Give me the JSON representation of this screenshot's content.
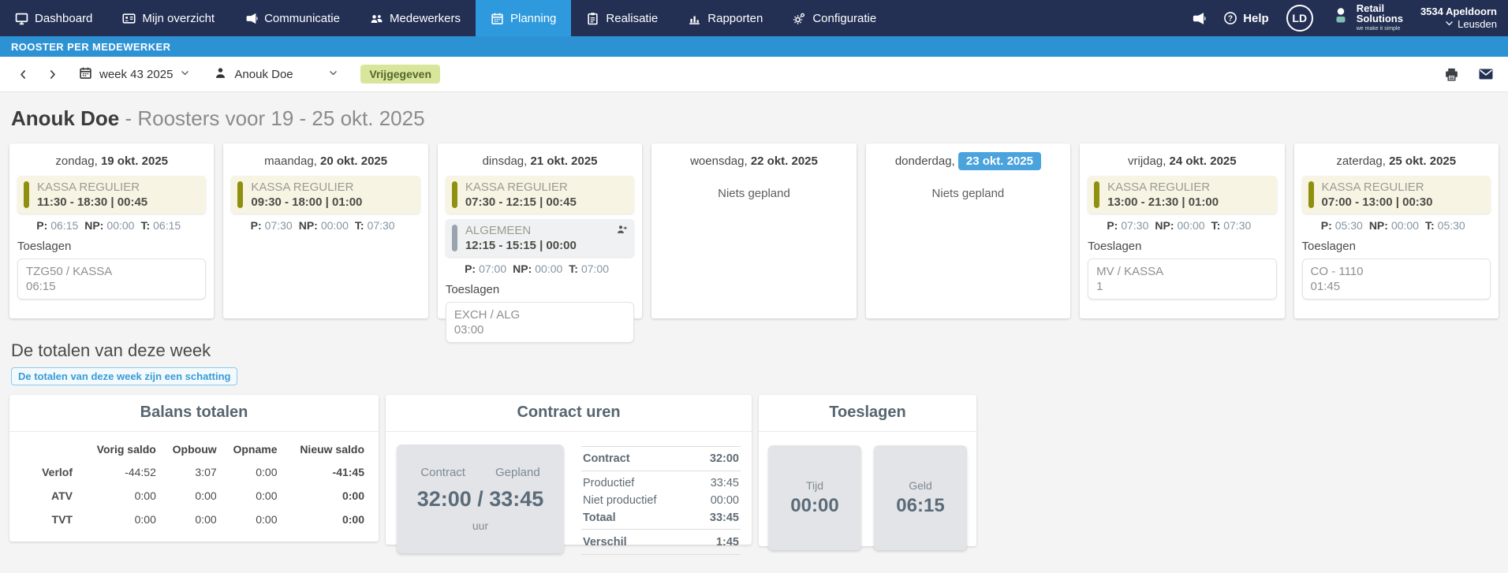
{
  "nav": {
    "items": [
      {
        "label": "Dashboard",
        "icon": "monitor",
        "active": false
      },
      {
        "label": "Mijn overzicht",
        "icon": "idcard",
        "active": false
      },
      {
        "label": "Communicatie",
        "icon": "megaphone",
        "active": false
      },
      {
        "label": "Medewerkers",
        "icon": "people",
        "active": false
      },
      {
        "label": "Planning",
        "icon": "calendar",
        "active": true
      },
      {
        "label": "Realisatie",
        "icon": "clipboard",
        "active": false
      },
      {
        "label": "Rapporten",
        "icon": "chart",
        "active": false
      },
      {
        "label": "Configuratie",
        "icon": "gears",
        "active": false
      }
    ],
    "help_label": "Help",
    "avatar_initials": "LD",
    "brand": {
      "line1": "Retail",
      "line2": "Solutions",
      "tagline": "we make it simple"
    },
    "location": {
      "code": "3534 Apeldoorn",
      "name": "Leusden"
    }
  },
  "subheader": {
    "title": "ROOSTER PER MEDEWERKER"
  },
  "toolbar": {
    "week_label": "week 43 2025",
    "employee": "Anouk Doe",
    "status_badge": "Vrijgegeven"
  },
  "page": {
    "employee_name": "Anouk Doe",
    "title_suffix": " - Roosters voor 19 - 25 okt. 2025"
  },
  "labels": {
    "p": "P:",
    "np": "NP:",
    "t": "T:",
    "toeslagen": "Toeslagen",
    "none_planned": "Niets gepland"
  },
  "days": [
    {
      "day": "zondag,",
      "date": "19 okt. 2025",
      "today": false,
      "shifts": [
        {
          "name": "KASSA REGULIER",
          "time": "11:30 - 18:30 | 00:45",
          "type": "olive",
          "exchange": false
        }
      ],
      "pnt": {
        "p": "06:15",
        "np": "00:00",
        "t": "06:15"
      },
      "toeslagen": [
        {
          "line1": "TZG50 / KASSA",
          "line2": "06:15"
        }
      ]
    },
    {
      "day": "maandag,",
      "date": "20 okt. 2025",
      "today": false,
      "shifts": [
        {
          "name": "KASSA REGULIER",
          "time": "09:30 - 18:00 | 01:00",
          "type": "olive",
          "exchange": false
        }
      ],
      "pnt": {
        "p": "07:30",
        "np": "00:00",
        "t": "07:30"
      },
      "toeslagen": []
    },
    {
      "day": "dinsdag,",
      "date": "21 okt. 2025",
      "today": false,
      "shifts": [
        {
          "name": "KASSA REGULIER",
          "time": "07:30 - 12:15 | 00:45",
          "type": "olive",
          "exchange": false
        },
        {
          "name": "ALGEMEEN",
          "time": "12:15 - 15:15 | 00:00",
          "type": "gray",
          "exchange": true
        }
      ],
      "pnt": {
        "p": "07:00",
        "np": "00:00",
        "t": "07:00"
      },
      "toeslagen": [
        {
          "line1": "EXCH / ALG",
          "line2": "03:00"
        }
      ]
    },
    {
      "day": "woensdag,",
      "date": "22 okt. 2025",
      "today": false,
      "shifts": [],
      "pnt": null,
      "toeslagen": []
    },
    {
      "day": "donderdag,",
      "date": "23 okt. 2025",
      "today": true,
      "shifts": [],
      "pnt": null,
      "toeslagen": []
    },
    {
      "day": "vrijdag,",
      "date": "24 okt. 2025",
      "today": false,
      "shifts": [
        {
          "name": "KASSA REGULIER",
          "time": "13:00 - 21:30 | 01:00",
          "type": "olive",
          "exchange": false
        }
      ],
      "pnt": {
        "p": "07:30",
        "np": "00:00",
        "t": "07:30"
      },
      "toeslagen": [
        {
          "line1": "MV / KASSA",
          "line2": "1"
        }
      ]
    },
    {
      "day": "zaterdag,",
      "date": "25 okt. 2025",
      "today": false,
      "shifts": [
        {
          "name": "KASSA REGULIER",
          "time": "07:00 - 13:00 | 00:30",
          "type": "olive",
          "exchange": false
        }
      ],
      "pnt": {
        "p": "05:30",
        "np": "00:00",
        "t": "05:30"
      },
      "toeslagen": [
        {
          "line1": "CO - 1110",
          "line2": "01:45"
        }
      ]
    }
  ],
  "totals": {
    "heading": "De totalen van deze week",
    "note": "De totalen van deze week zijn een schatting",
    "balans": {
      "title": "Balans totalen",
      "headers": [
        "Vorig saldo",
        "Opbouw",
        "Opname",
        "Nieuw saldo"
      ],
      "rows": [
        {
          "label": "Verlof",
          "values": [
            "-44:52",
            "3:07",
            "0:00",
            "-41:45"
          ]
        },
        {
          "label": "ATV",
          "values": [
            "0:00",
            "0:00",
            "0:00",
            "0:00"
          ]
        },
        {
          "label": "TVT",
          "values": [
            "0:00",
            "0:00",
            "0:00",
            "0:00"
          ]
        }
      ]
    },
    "contract": {
      "title": "Contract uren",
      "box": {
        "label_left": "Contract",
        "label_right": "Gepland",
        "value": "32:00 / 33:45",
        "unit": "uur"
      },
      "rows": [
        {
          "label": "Contract",
          "value": "32:00"
        },
        {
          "label": "Productief",
          "value": "33:45"
        },
        {
          "label": "Niet productief",
          "value": "00:00"
        },
        {
          "label": "Totaal",
          "value": "33:45"
        },
        {
          "label": "Verschil",
          "value": "1:45"
        }
      ]
    },
    "toeslagen": {
      "title": "Toeslagen",
      "boxes": [
        {
          "label": "Tijd",
          "value": "00:00"
        },
        {
          "label": "Geld",
          "value": "06:15"
        }
      ]
    }
  }
}
